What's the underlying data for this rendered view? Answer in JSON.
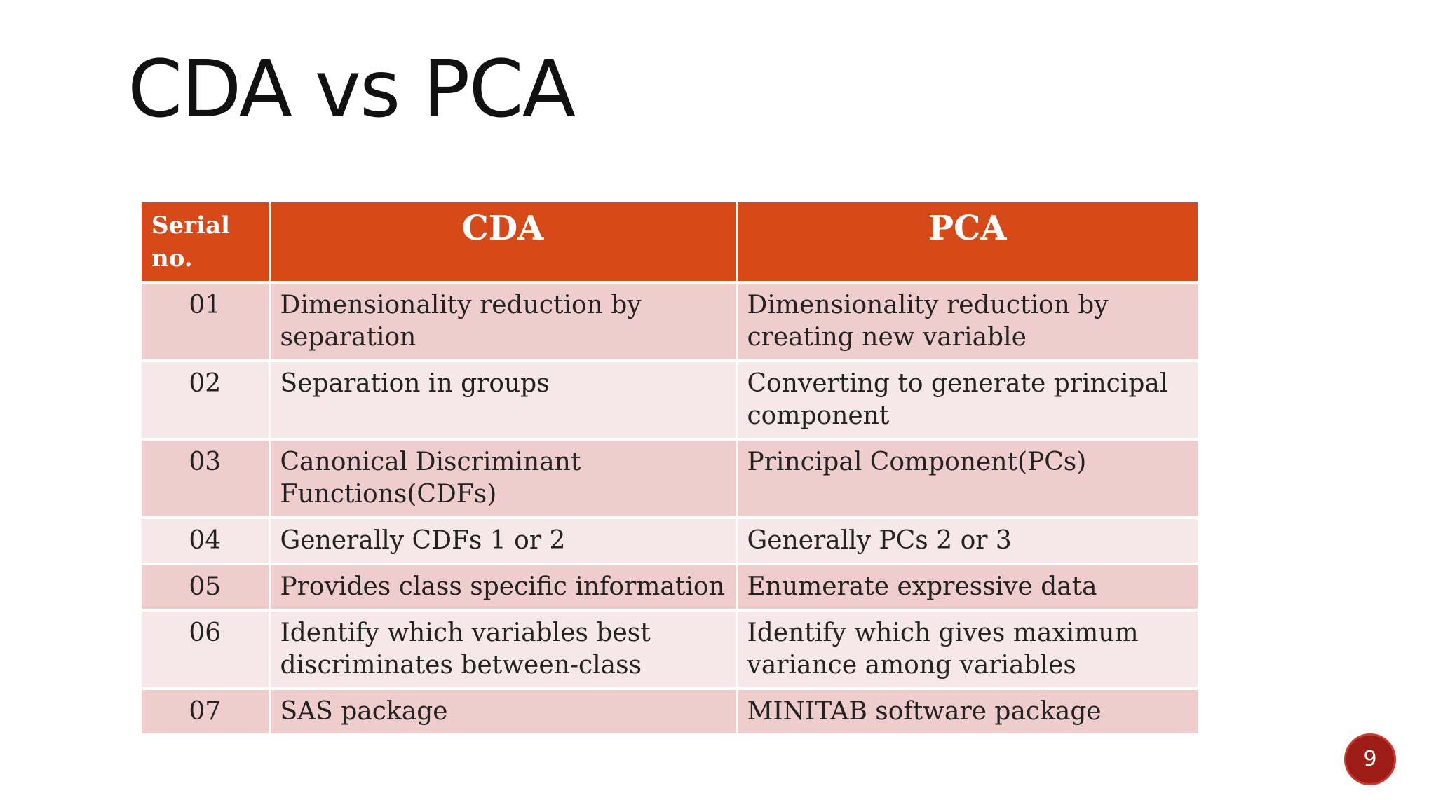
{
  "slide": {
    "title": "CDA vs PCA",
    "page_number": "9"
  },
  "table": {
    "headers": [
      "Serial no.",
      "CDA",
      "PCA"
    ],
    "rows": [
      {
        "serial": "01",
        "cda": "Dimensionality reduction by separation",
        "pca": "Dimensionality reduction by creating new variable"
      },
      {
        "serial": "02",
        "cda": "Separation in groups",
        "pca": "Converting to generate principal component"
      },
      {
        "serial": "03",
        "cda": "Canonical Discriminant Functions(CDFs)",
        "pca": "Principal Component(PCs)"
      },
      {
        "serial": "04",
        "cda": "Generally CDFs 1 or 2",
        "pca": "Generally PCs 2 or 3"
      },
      {
        "serial": "05",
        "cda": "Provides class specific information",
        "pca": "Enumerate expressive data"
      },
      {
        "serial": "06",
        "cda": "Identify which variables best discriminates between-class",
        "pca": "Identify which gives maximum variance among variables"
      },
      {
        "serial": "07",
        "cda": "SAS package",
        "pca": "MINITAB software package"
      }
    ]
  },
  "colors": {
    "header_bg": "#d64a1a",
    "row_odd_bg": "#efcdcd",
    "row_even_bg": "#f6e8e8",
    "badge_bg": "#9e1c16"
  }
}
